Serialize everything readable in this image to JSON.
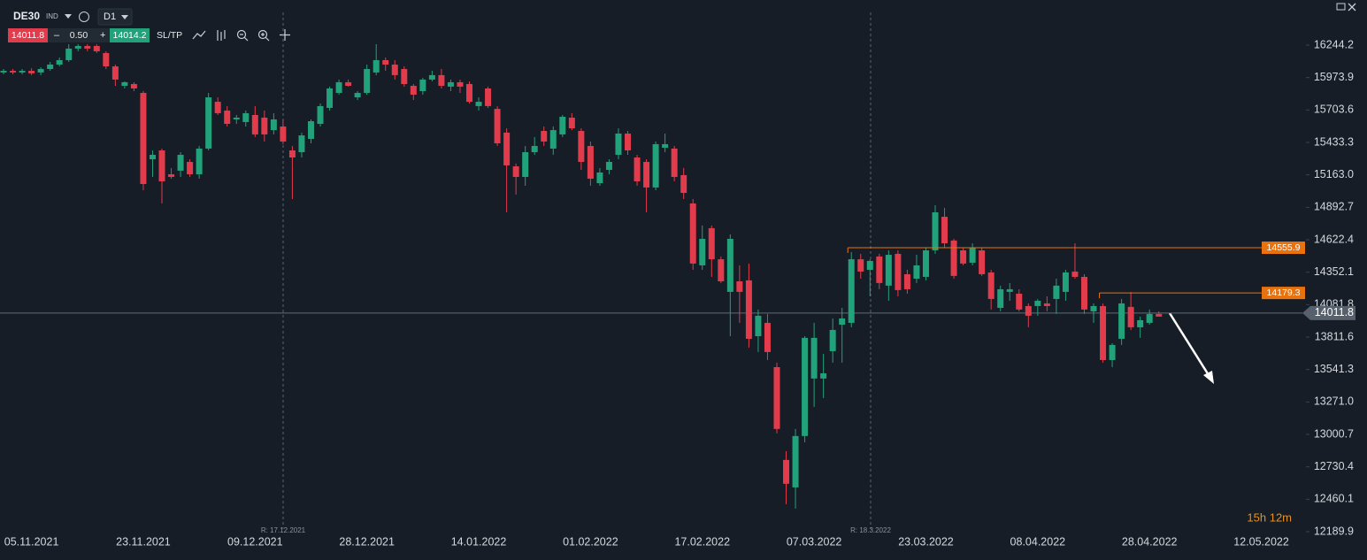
{
  "toolbar": {
    "symbol": "DE30",
    "market": "IND",
    "timeframe": "D1",
    "bid": "14011.8",
    "lot": "0.50",
    "ask": "14014.2",
    "sltp": "SL/TP",
    "timer": "15h 12m"
  },
  "chart_data": {
    "type": "candlestick",
    "categories": [
      null,
      null,
      null,
      "05.11.2021",
      null,
      null,
      null,
      null,
      null,
      null,
      null,
      null,
      null,
      null,
      null,
      "23.11.2021",
      null,
      null,
      null,
      null,
      null,
      null,
      null,
      null,
      null,
      null,
      null,
      "09.12.2021",
      null,
      null,
      null,
      null,
      null,
      null,
      null,
      null,
      null,
      null,
      null,
      "28.12.2021",
      null,
      null,
      null,
      null,
      null,
      null,
      null,
      null,
      null,
      null,
      null,
      "14.01.2022",
      null,
      null,
      null,
      null,
      null,
      null,
      null,
      null,
      null,
      null,
      null,
      "01.02.2022",
      null,
      null,
      null,
      null,
      null,
      null,
      null,
      null,
      null,
      null,
      null,
      "17.02.2022",
      null,
      null,
      null,
      null,
      null,
      null,
      null,
      null,
      null,
      null,
      null,
      "07.03.2022",
      null,
      null,
      null,
      null,
      null,
      null,
      null,
      null,
      null,
      null,
      null,
      "23.03.2022",
      null,
      null,
      null,
      null,
      null,
      null,
      null,
      null,
      null,
      null,
      null,
      "08.04.2022",
      null,
      null,
      null,
      null,
      null,
      null,
      null,
      null,
      null,
      null,
      null,
      "28.04.2022",
      null,
      null,
      null,
      null,
      null,
      null,
      null,
      null,
      null,
      null,
      null,
      "12.05.2022",
      null
    ],
    "open": [
      16016,
      16030,
      16016,
      16030,
      16016,
      16045,
      16082,
      16119,
      16215,
      16237,
      16237,
      16178,
      16067,
      15905,
      15920,
      15846,
      15293,
      15367,
      15168,
      15198,
      15271,
      15168,
      15382,
      15772,
      15699,
      15625,
      15603,
      15662,
      15640,
      15536,
      15566,
      15367,
      15352,
      15463,
      15588,
      15721,
      15846,
      15935,
      15809,
      15846,
      16016,
      16119,
      16082,
      16045,
      15905,
      15861,
      15957,
      15994,
      15898,
      15935,
      15920,
      15736,
      15883,
      15713,
      15515,
      15234,
      15146,
      15352,
      15529,
      15382,
      15500,
      15640,
      15529,
      15404,
      15094,
      15205,
      15330,
      15507,
      15308,
      15271,
      15058,
      15389,
      15382,
      15161,
      14925,
      14409,
      14719,
      14460,
      14188,
      14276,
      14284,
      13819,
      13930,
      13561,
      12788,
      12559,
      12987,
      13466,
      13466,
      13694,
      13915,
      13930,
      14460,
      14372,
      14483,
      14240,
      14505,
      14335,
      14298,
      14313,
      14534,
      14814,
      14616,
      14534,
      14431,
      14534,
      14350,
      14055,
      14188,
      14173,
      14070,
      14070,
      14092,
      14129,
      14188,
      14357,
      14313,
      14026,
      14070,
      13620,
      13797,
      14063,
      13893,
      13930,
      14004,
      null,
      null,
      null,
      null,
      null,
      null,
      null,
      null,
      null,
      null,
      null,
      null
    ],
    "high": [
      16045,
      16045,
      16045,
      16052,
      16060,
      16104,
      16141,
      16252,
      16252,
      16252,
      16252,
      16193,
      16082,
      15942,
      15935,
      15861,
      15367,
      15382,
      15220,
      15352,
      15293,
      15404,
      15846,
      15809,
      15736,
      15662,
      15699,
      15736,
      15699,
      15677,
      15625,
      15404,
      15515,
      15625,
      15758,
      15898,
      15957,
      15957,
      15861,
      16082,
      16252,
      16141,
      16119,
      16067,
      15920,
      15971,
      16030,
      16045,
      15957,
      15957,
      15942,
      15809,
      15898,
      15736,
      15551,
      15257,
      15404,
      15478,
      15566,
      15566,
      15662,
      15677,
      15551,
      15441,
      15220,
      15293,
      15551,
      15529,
      15330,
      15293,
      15441,
      15507,
      15404,
      15220,
      14962,
      14741,
      14741,
      14483,
      14667,
      14409,
      14424,
      14041,
      14004,
      13598,
      12861,
      13046,
      13819,
      13930,
      13672,
      13967,
      14055,
      14520,
      14505,
      14460,
      14505,
      14534,
      14534,
      14372,
      14497,
      14556,
      14910,
      14888,
      14630,
      14556,
      14593,
      14556,
      14372,
      14240,
      14262,
      14210,
      14092,
      14129,
      14151,
      14298,
      14372,
      14593,
      14335,
      14092,
      14092,
      13760,
      14129,
      14188,
      13982,
      14041,
      14026,
      null,
      null,
      null,
      null,
      null,
      null,
      null,
      null,
      null,
      null,
      null,
      null
    ],
    "low": [
      16001,
      16001,
      16001,
      15994,
      15994,
      16030,
      16067,
      16104,
      16193,
      16193,
      16178,
      16045,
      15905,
      15883,
      15861,
      15035,
      15146,
      14925,
      15131,
      15146,
      15146,
      15131,
      15367,
      15662,
      15566,
      15588,
      15566,
      15478,
      15441,
      15500,
      15419,
      14962,
      15308,
      15426,
      15566,
      15699,
      15831,
      15898,
      15787,
      15831,
      15994,
      16030,
      15957,
      15898,
      15787,
      15831,
      15942,
      15883,
      15861,
      15846,
      15758,
      15699,
      15721,
      15404,
      14851,
      14999,
      15072,
      15330,
      15404,
      15330,
      15478,
      15536,
      15205,
      15072,
      15072,
      15168,
      15293,
      15330,
      15072,
      14851,
      15035,
      15352,
      15109,
      14962,
      14372,
      14372,
      14313,
      14262,
      13819,
      13930,
      13724,
      13687,
      13620,
      13009,
      12419,
      12382,
      12935,
      13230,
      13303,
      13598,
      13598,
      13893,
      14298,
      14151,
      14210,
      14114,
      14151,
      14173,
      14262,
      14284,
      14505,
      14556,
      14298,
      14409,
      14409,
      14321,
      14041,
      14026,
      14114,
      14026,
      13893,
      13989,
      14026,
      14004,
      14114,
      14298,
      14004,
      13930,
      13598,
      13561,
      13746,
      13871,
      13805,
      13915,
      13982,
      null,
      null,
      null,
      null,
      null,
      null,
      null,
      null,
      null,
      null,
      null,
      null
    ],
    "close": [
      16030,
      16016,
      16030,
      16009,
      16045,
      16082,
      16119,
      16215,
      16237,
      16215,
      16193,
      16067,
      15957,
      15935,
      15883,
      15087,
      15330,
      15109,
      15146,
      15330,
      15168,
      15382,
      15809,
      15677,
      15588,
      15640,
      15677,
      15500,
      15500,
      15625,
      15441,
      15308,
      15492,
      15610,
      15736,
      15883,
      15935,
      15905,
      15846,
      16045,
      16119,
      16082,
      15994,
      15920,
      15831,
      15957,
      15994,
      15905,
      15935,
      15898,
      15772,
      15772,
      15736,
      15426,
      15242,
      15146,
      15352,
      15404,
      15441,
      15536,
      15647,
      15551,
      15271,
      15131,
      15183,
      15271,
      15507,
      15367,
      15109,
      15058,
      15419,
      15419,
      15146,
      15013,
      14424,
      14630,
      14460,
      14276,
      14630,
      14188,
      13797,
      13989,
      13687,
      13046,
      12589,
      12987,
      13805,
      13805,
      13510,
      13871,
      13967,
      14460,
      14357,
      14446,
      14262,
      14497,
      14203,
      14210,
      14409,
      14534,
      14851,
      14593,
      14321,
      14424,
      14556,
      14335,
      14129,
      14210,
      14210,
      14041,
      13989,
      14114,
      14070,
      14240,
      14350,
      14313,
      14041,
      14070,
      13620,
      13746,
      14092,
      13893,
      13952,
      14004,
      13982,
      null,
      null,
      null,
      null,
      null,
      null,
      null,
      null,
      null,
      null,
      null,
      null
    ],
    "up_color": "#21a27a",
    "down_color": "#e23b4b",
    "ylim": [
      12189.9,
      16620.1
    ],
    "yticks": [
      16244.2,
      15973.9,
      15703.6,
      15433.3,
      {
        "value": 15163,
        "label": "15163.0"
      },
      14892.7,
      14622.4,
      14352.1,
      14081.8,
      13811.6,
      13541.3,
      {
        "value": 13271,
        "label": "13271.0"
      },
      13000.7,
      12730.4,
      12460.1,
      12189.9
    ],
    "grid": false,
    "levels": [
      {
        "value": 14555.9,
        "color": "#e8730e"
      },
      {
        "value": 14179.3,
        "color": "#e8730e"
      }
    ],
    "price_line": {
      "value": 14011.8,
      "color": "#5f6b78"
    },
    "annotations": [
      "R: 17.12.2021",
      "R: 18.3.2022"
    ]
  }
}
